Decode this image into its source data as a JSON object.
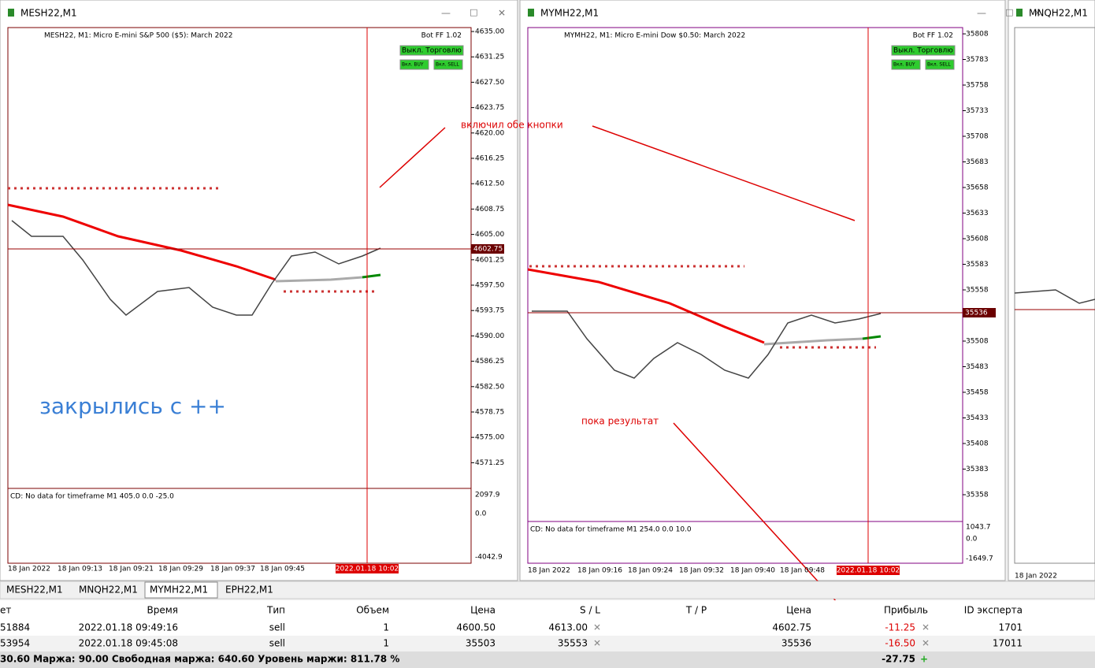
{
  "windows": [
    {
      "title": "MESH22,M1",
      "label": "MESH22, M1:  Micro E-mini S&P 500 ($5): March 2022",
      "bot": "Bot FF 1.02",
      "buttons": [
        "Выкл. Торговлю",
        "Вкл. BUY",
        "Вкл. SELL"
      ],
      "price_ticks": [
        "4635.00",
        "4631.25",
        "4627.50",
        "4623.75",
        "4620.00",
        "4616.25",
        "4612.50",
        "4608.75",
        "4605.00",
        "4601.25",
        "4597.50",
        "4593.75",
        "4590.00",
        "4586.25",
        "4582.50",
        "4578.75",
        "4575.00",
        "4571.25"
      ],
      "current_price": "4602.75",
      "indicator_label": "CD: No data for timeframe M1 405.0 0.0 -25.0",
      "indicator_ticks": [
        "2097.9",
        "0.0",
        "-4042.9"
      ],
      "time_labels": [
        "18 Jan 2022",
        "18 Jan 09:13",
        "18 Jan 09:21",
        "18 Jan 09:29",
        "18 Jan 09:37",
        "18 Jan 09:45"
      ],
      "time_marker": "2022.01.18 10:02"
    },
    {
      "title": "MYMH22,M1",
      "label": "MYMH22, M1:  Micro E-mini Dow $0.50: March 2022",
      "bot": "Bot FF 1.02",
      "buttons": [
        "Выкл. Торговлю",
        "Вкл. BUY",
        "Вкл. SELL"
      ],
      "price_ticks": [
        "35808",
        "35783",
        "35758",
        "35733",
        "35708",
        "35683",
        "35658",
        "35633",
        "35608",
        "35583",
        "35558",
        "35533",
        "35508",
        "35483",
        "35458",
        "35433",
        "35408",
        "35383",
        "35358"
      ],
      "current_price": "35536",
      "indicator_label": "CD: No data for timeframe M1 254.0 0.0 10.0",
      "indicator_ticks": [
        "1043.7",
        "0.0",
        "-1649.7"
      ],
      "time_labels": [
        "18 Jan 2022",
        "18 Jan 09:16",
        "18 Jan 09:24",
        "18 Jan 09:32",
        "18 Jan 09:40",
        "18 Jan 09:48"
      ],
      "time_marker": "2022.01.18 10:02"
    },
    {
      "title": "MNQH22,M1",
      "time_labels": [
        "18 Jan 2022"
      ]
    }
  ],
  "annotations": [
    "включил обе кнопки",
    "закрылись с  ++",
    "пока результат"
  ],
  "tabs": [
    "MESH22,M1",
    "MNQH22,M1",
    "MYMH22,M1",
    "EPH22,M1"
  ],
  "table": {
    "headers": [
      "ет",
      "Время",
      "Тип",
      "Объем",
      "Цена",
      "S / L",
      "T / P",
      "Цена",
      "Прибыль",
      "ID эксперта"
    ],
    "rows": [
      {
        "ticket": "51884",
        "time": "2022.01.18 09:49:16",
        "type": "sell",
        "volume": "1",
        "price": "4600.50",
        "sl": "4613.00",
        "current": "4602.75",
        "profit": "-11.25",
        "id": "1701"
      },
      {
        "ticket": "53954",
        "time": "2022.01.18 09:45:08",
        "type": "sell",
        "volume": "1",
        "price": "35503",
        "sl": "35553",
        "current": "35536",
        "profit": "-16.50",
        "id": "17011"
      }
    ],
    "footer": "30.60  Маржа: 90.00  Свободная маржа: 640.60  Уровень маржи: 811.78 %",
    "footer_total": "-27.75"
  }
}
